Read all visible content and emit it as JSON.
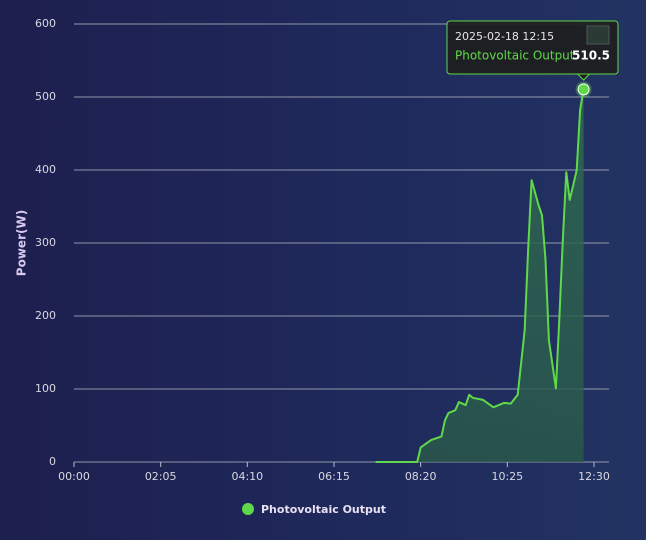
{
  "chart_data": {
    "type": "area",
    "y_label": "Power(W)",
    "x": [
      435,
      470,
      495,
      500,
      515,
      530,
      535,
      540,
      550,
      555,
      565,
      570,
      575,
      590,
      605,
      610,
      620,
      630,
      640,
      650,
      655,
      660,
      670,
      675,
      680,
      685,
      695,
      700,
      705,
      710,
      715,
      720,
      725,
      730,
      735
    ],
    "series": [
      {
        "name": "Photovoltaic Output",
        "color": "#5fd94a",
        "values": [
          0,
          0,
          0,
          20,
          30,
          35,
          57,
          67,
          71,
          82,
          78,
          92,
          88,
          85,
          75,
          77,
          81,
          80,
          92,
          181,
          290,
          386,
          352,
          338,
          277,
          167,
          101,
          195,
          304,
          397,
          359,
          379,
          400,
          482,
          510.5
        ]
      }
    ],
    "xlim": [
      0,
      750
    ],
    "xticks": [
      {
        "value": 0,
        "label": "00:00"
      },
      {
        "value": 125,
        "label": "02:05"
      },
      {
        "value": 250,
        "label": "04:10"
      },
      {
        "value": 375,
        "label": "06:15"
      },
      {
        "value": 500,
        "label": "08:20"
      },
      {
        "value": 625,
        "label": "10:25"
      },
      {
        "value": 750,
        "label": "12:30"
      }
    ],
    "ylim": [
      0,
      600
    ],
    "yticks": [
      0,
      100,
      200,
      300,
      400,
      500,
      600
    ],
    "grid": true,
    "legend": "bottom",
    "tooltip": {
      "title": "2025-02-18 12:15",
      "label": "Photovoltaic Output:"
    }
  }
}
